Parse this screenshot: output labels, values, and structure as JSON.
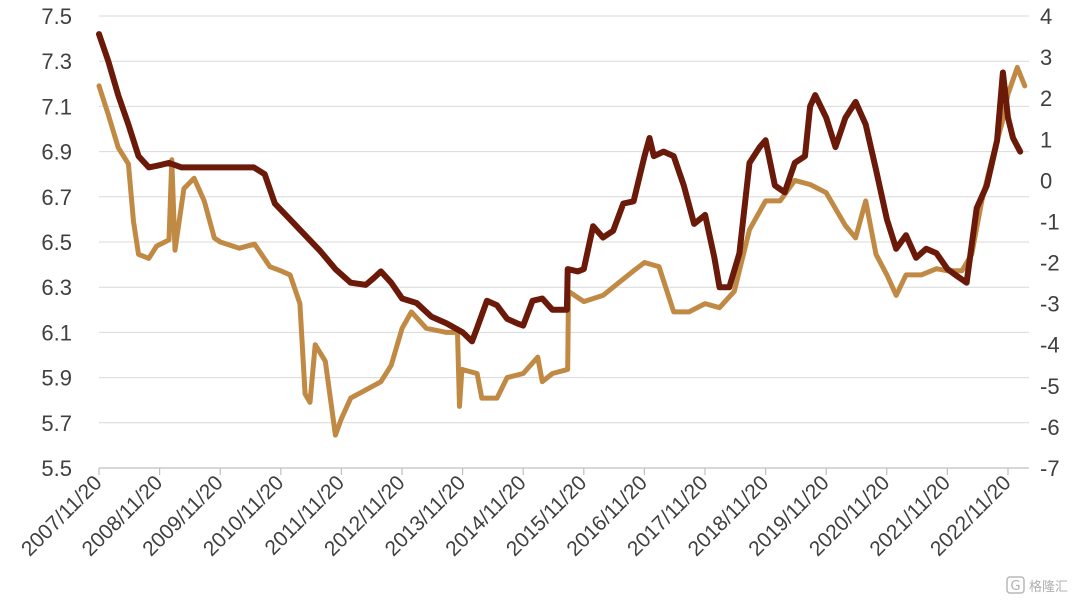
{
  "chart_data": {
    "type": "line",
    "title": "",
    "xlabel": "",
    "ylabel_left": "",
    "ylabel_right": "",
    "x_ticks": [
      "2007/11/20",
      "2008/11/20",
      "2009/11/20",
      "2010/11/20",
      "2011/11/20",
      "2012/11/20",
      "2013/11/20",
      "2014/11/20",
      "2015/11/20",
      "2016/11/20",
      "2017/11/20",
      "2018/11/20",
      "2019/11/20",
      "2020/11/20",
      "2021/11/20",
      "2022/11/20"
    ],
    "y_left_ticks": [
      "7.5",
      "7.3",
      "7.1",
      "6.9",
      "6.7",
      "6.5",
      "6.3",
      "6.1",
      "5.9",
      "5.7",
      "5.5"
    ],
    "y_right_ticks": [
      "4",
      "3",
      "2",
      "1",
      "0",
      "-1",
      "-2",
      "-3",
      "-4",
      "-5",
      "-6",
      "-7"
    ],
    "ylim_left": [
      5.5,
      7.5
    ],
    "ylim_right": [
      -7,
      4
    ],
    "grid": "horizontal",
    "legend": "none",
    "x_range": [
      "2007-11-20",
      "2023-03-01"
    ],
    "series": [
      {
        "axis": "left",
        "color": "#6b1a0a",
        "points": [
          [
            "2007-11-20",
            7.42
          ],
          [
            "2008-01-15",
            7.3
          ],
          [
            "2008-03-15",
            7.15
          ],
          [
            "2008-05-15",
            7.02
          ],
          [
            "2008-07-15",
            6.88
          ],
          [
            "2008-09-15",
            6.83
          ],
          [
            "2008-11-20",
            6.84
          ],
          [
            "2009-01-15",
            6.85
          ],
          [
            "2009-04-01",
            6.83
          ],
          [
            "2009-07-01",
            6.83
          ],
          [
            "2009-11-20",
            6.83
          ],
          [
            "2010-04-01",
            6.83
          ],
          [
            "2010-06-10",
            6.83
          ],
          [
            "2010-08-15",
            6.8
          ],
          [
            "2010-10-15",
            6.67
          ],
          [
            "2011-01-15",
            6.6
          ],
          [
            "2011-04-15",
            6.53
          ],
          [
            "2011-07-15",
            6.46
          ],
          [
            "2011-10-15",
            6.38
          ],
          [
            "2012-01-15",
            6.32
          ],
          [
            "2012-04-15",
            6.31
          ],
          [
            "2012-06-01",
            6.34
          ],
          [
            "2012-07-15",
            6.37
          ],
          [
            "2012-09-15",
            6.32
          ],
          [
            "2012-11-20",
            6.25
          ],
          [
            "2013-02-15",
            6.23
          ],
          [
            "2013-05-15",
            6.17
          ],
          [
            "2013-08-15",
            6.14
          ],
          [
            "2013-11-20",
            6.1
          ],
          [
            "2014-01-15",
            6.06
          ],
          [
            "2014-02-15",
            6.12
          ],
          [
            "2014-04-15",
            6.24
          ],
          [
            "2014-06-15",
            6.22
          ],
          [
            "2014-08-15",
            6.16
          ],
          [
            "2014-10-15",
            6.14
          ],
          [
            "2014-11-20",
            6.13
          ],
          [
            "2015-01-15",
            6.24
          ],
          [
            "2015-03-15",
            6.25
          ],
          [
            "2015-05-15",
            6.2
          ],
          [
            "2015-08-10",
            6.2
          ],
          [
            "2015-08-15",
            6.38
          ],
          [
            "2015-10-15",
            6.37
          ],
          [
            "2015-11-20",
            6.38
          ],
          [
            "2016-01-15",
            6.57
          ],
          [
            "2016-03-15",
            6.52
          ],
          [
            "2016-05-15",
            6.55
          ],
          [
            "2016-07-15",
            6.67
          ],
          [
            "2016-09-15",
            6.68
          ],
          [
            "2016-11-20",
            6.88
          ],
          [
            "2016-12-20",
            6.96
          ],
          [
            "2017-01-15",
            6.88
          ],
          [
            "2017-03-15",
            6.9
          ],
          [
            "2017-05-15",
            6.88
          ],
          [
            "2017-07-15",
            6.75
          ],
          [
            "2017-09-15",
            6.58
          ],
          [
            "2017-11-20",
            6.62
          ],
          [
            "2018-01-15",
            6.43
          ],
          [
            "2018-02-15",
            6.3
          ],
          [
            "2018-04-15",
            6.3
          ],
          [
            "2018-06-15",
            6.45
          ],
          [
            "2018-08-15",
            6.85
          ],
          [
            "2018-10-15",
            6.92
          ],
          [
            "2018-11-20",
            6.95
          ],
          [
            "2019-01-15",
            6.75
          ],
          [
            "2019-03-15",
            6.72
          ],
          [
            "2019-05-15",
            6.85
          ],
          [
            "2019-07-15",
            6.88
          ],
          [
            "2019-08-15",
            7.1
          ],
          [
            "2019-09-15",
            7.15
          ],
          [
            "2019-11-20",
            7.05
          ],
          [
            "2020-01-15",
            6.92
          ],
          [
            "2020-03-15",
            7.05
          ],
          [
            "2020-05-15",
            7.12
          ],
          [
            "2020-07-15",
            7.02
          ],
          [
            "2020-09-15",
            6.82
          ],
          [
            "2020-11-20",
            6.6
          ],
          [
            "2021-01-15",
            6.47
          ],
          [
            "2021-03-15",
            6.53
          ],
          [
            "2021-05-15",
            6.43
          ],
          [
            "2021-07-15",
            6.47
          ],
          [
            "2021-09-15",
            6.45
          ],
          [
            "2021-11-20",
            6.38
          ],
          [
            "2022-01-15",
            6.35
          ],
          [
            "2022-03-15",
            6.32
          ],
          [
            "2022-05-15",
            6.65
          ],
          [
            "2022-07-15",
            6.75
          ],
          [
            "2022-09-15",
            6.95
          ],
          [
            "2022-10-20",
            7.25
          ],
          [
            "2022-11-20",
            7.05
          ],
          [
            "2022-12-20",
            6.96
          ],
          [
            "2023-02-01",
            6.9
          ]
        ]
      },
      {
        "axis": "right",
        "color": "#c08a45",
        "points": [
          [
            "2007-11-20",
            2.3
          ],
          [
            "2008-01-15",
            1.6
          ],
          [
            "2008-03-15",
            0.8
          ],
          [
            "2008-05-15",
            0.4
          ],
          [
            "2008-06-15",
            -1.0
          ],
          [
            "2008-07-15",
            -1.8
          ],
          [
            "2008-09-15",
            -1.9
          ],
          [
            "2008-11-01",
            -1.6
          ],
          [
            "2009-01-15",
            -1.45
          ],
          [
            "2009-02-01",
            0.5
          ],
          [
            "2009-02-20",
            -1.7
          ],
          [
            "2009-04-15",
            -0.2
          ],
          [
            "2009-06-15",
            0.05
          ],
          [
            "2009-08-15",
            -0.5
          ],
          [
            "2009-10-15",
            -1.4
          ],
          [
            "2009-11-20",
            -1.5
          ],
          [
            "2010-03-15",
            -1.65
          ],
          [
            "2010-06-15",
            -1.55
          ],
          [
            "2010-09-15",
            -2.1
          ],
          [
            "2010-11-20",
            -2.2
          ],
          [
            "2011-01-15",
            -2.3
          ],
          [
            "2011-03-15",
            -3.0
          ],
          [
            "2011-04-15",
            -5.2
          ],
          [
            "2011-05-15",
            -5.4
          ],
          [
            "2011-06-15",
            -4.0
          ],
          [
            "2011-08-15",
            -4.4
          ],
          [
            "2011-10-15",
            -6.2
          ],
          [
            "2011-11-20",
            -5.8
          ],
          [
            "2012-01-15",
            -5.3
          ],
          [
            "2012-04-15",
            -5.1
          ],
          [
            "2012-07-15",
            -4.9
          ],
          [
            "2012-09-15",
            -4.5
          ],
          [
            "2012-11-20",
            -3.6
          ],
          [
            "2013-01-15",
            -3.2
          ],
          [
            "2013-04-15",
            -3.6
          ],
          [
            "2013-08-15",
            -3.7
          ],
          [
            "2013-10-20",
            -3.7
          ],
          [
            "2013-11-01",
            -5.5
          ],
          [
            "2013-11-15",
            -4.6
          ],
          [
            "2014-02-15",
            -4.7
          ],
          [
            "2014-03-15",
            -5.3
          ],
          [
            "2014-06-15",
            -5.3
          ],
          [
            "2014-08-15",
            -4.8
          ],
          [
            "2014-11-20",
            -4.7
          ],
          [
            "2015-02-15",
            -4.3
          ],
          [
            "2015-03-15",
            -4.9
          ],
          [
            "2015-05-15",
            -4.7
          ],
          [
            "2015-08-15",
            -4.6
          ],
          [
            "2015-08-20",
            -2.7
          ],
          [
            "2015-11-20",
            -2.95
          ],
          [
            "2016-03-15",
            -2.8
          ],
          [
            "2016-06-15",
            -2.5
          ],
          [
            "2016-09-15",
            -2.2
          ],
          [
            "2016-11-20",
            -2.0
          ],
          [
            "2017-02-15",
            -2.1
          ],
          [
            "2017-05-15",
            -3.2
          ],
          [
            "2017-08-15",
            -3.2
          ],
          [
            "2017-11-20",
            -3.0
          ],
          [
            "2018-02-15",
            -3.1
          ],
          [
            "2018-05-15",
            -2.7
          ],
          [
            "2018-08-15",
            -1.2
          ],
          [
            "2018-11-20",
            -0.5
          ],
          [
            "2019-02-15",
            -0.5
          ],
          [
            "2019-05-15",
            0.0
          ],
          [
            "2019-08-15",
            -0.1
          ],
          [
            "2019-11-20",
            -0.3
          ],
          [
            "2020-03-15",
            -1.1
          ],
          [
            "2020-05-15",
            -1.4
          ],
          [
            "2020-07-15",
            -0.5
          ],
          [
            "2020-09-15",
            -1.8
          ],
          [
            "2020-11-20",
            -2.3
          ],
          [
            "2021-01-15",
            -2.8
          ],
          [
            "2021-03-15",
            -2.3
          ],
          [
            "2021-06-15",
            -2.3
          ],
          [
            "2021-09-15",
            -2.15
          ],
          [
            "2021-11-20",
            -2.2
          ],
          [
            "2022-02-15",
            -2.2
          ],
          [
            "2022-04-15",
            -1.8
          ],
          [
            "2022-06-15",
            -0.5
          ],
          [
            "2022-08-15",
            0.5
          ],
          [
            "2022-10-15",
            1.4
          ],
          [
            "2022-11-20",
            2.1
          ],
          [
            "2023-01-15",
            2.75
          ],
          [
            "2023-03-01",
            2.3
          ]
        ]
      }
    ]
  },
  "watermark": {
    "text": "格隆汇"
  }
}
